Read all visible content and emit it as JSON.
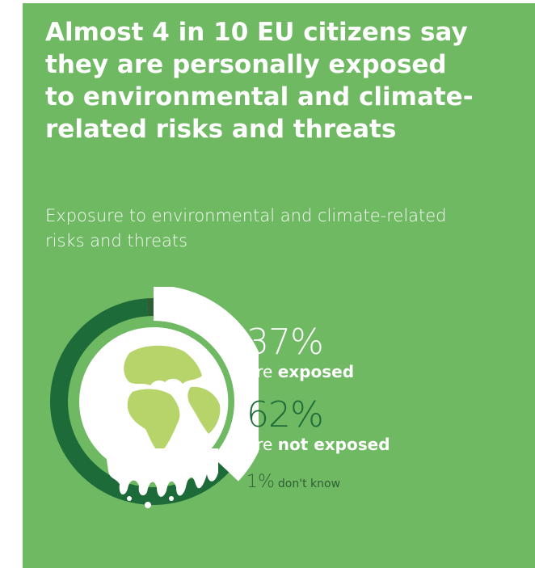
{
  "headline": "Almost 4 in 10 EU citizens say they are personally exposed to environmental and climate-related risks and threats",
  "colors": {
    "background": "#6fb963",
    "exposed": "#ffffff",
    "not_exposed": "#1e6b3a",
    "dont_know": "#2e5e35",
    "globe_land": "#b6d46a"
  },
  "stats": {
    "exposed_value": "37%",
    "exposed_prefix": "are",
    "exposed_word": "exposed",
    "not_exposed_value": "62%",
    "not_exposed_prefix": "are",
    "not_exposed_word": "not exposed",
    "dont_know_value": "1%",
    "dont_know_label": "don't know"
  },
  "chart_data": {
    "type": "pie",
    "title": "Exposure to environmental and climate-related risks and threats",
    "categories": [
      "exposed",
      "not exposed",
      "don't know"
    ],
    "values": [
      37,
      62,
      1
    ],
    "icon": "melting-globe-icon"
  }
}
